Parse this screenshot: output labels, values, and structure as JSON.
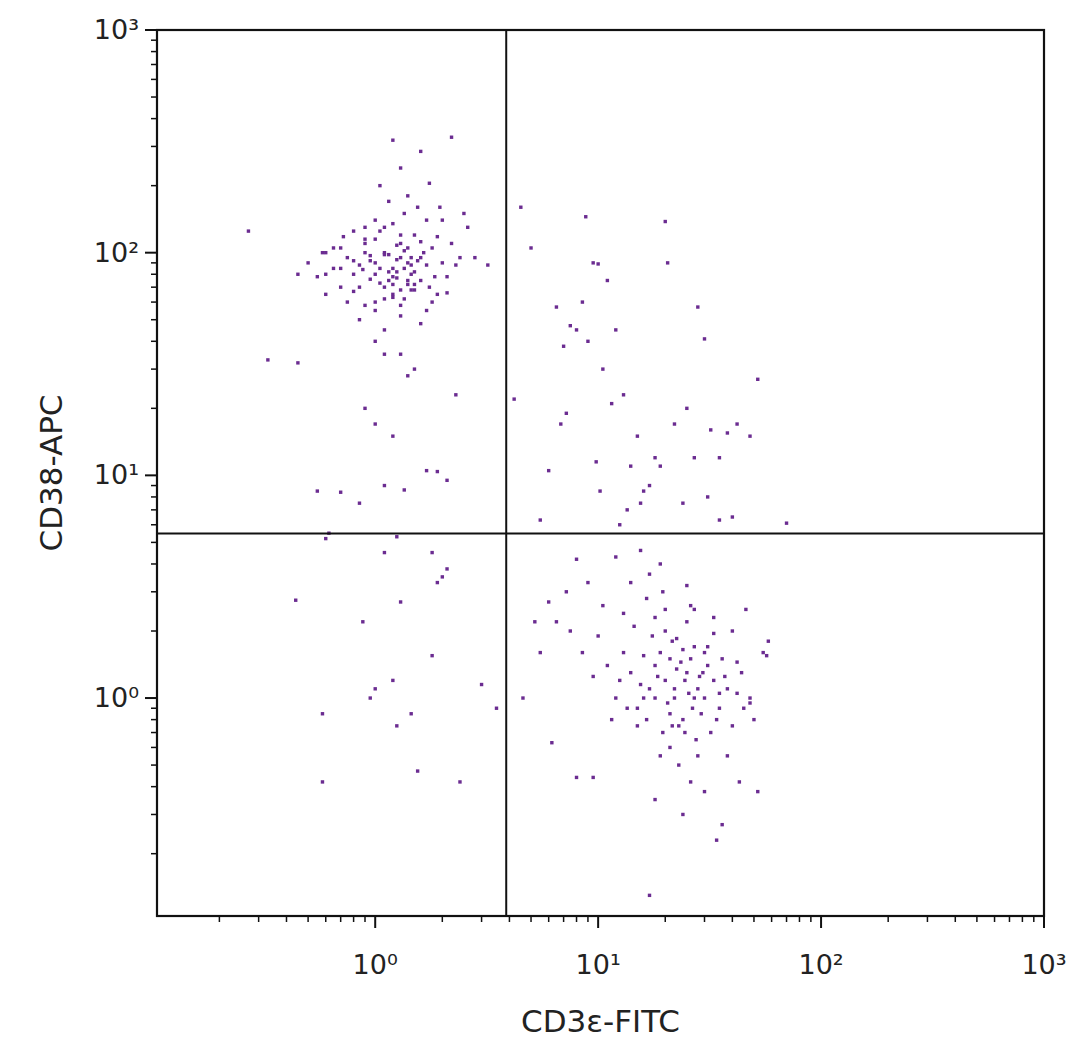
{
  "chart_data": {
    "type": "scatter",
    "log": true,
    "color": "#6b2c91",
    "marker": "square",
    "xlabel": "CD3ε-FITC",
    "ylabel": "CD38-APC",
    "xlim": [
      0.105,
      1000
    ],
    "ylim": [
      0.105,
      1000
    ],
    "xticks": [
      {
        "value": 1,
        "label": "10⁰"
      },
      {
        "value": 10,
        "label": "10¹"
      },
      {
        "value": 100,
        "label": "10²"
      },
      {
        "value": 1000,
        "label": "10³"
      }
    ],
    "yticks": [
      {
        "value": 1,
        "label": "10⁰"
      },
      {
        "value": 10,
        "label": "10¹"
      },
      {
        "value": 100,
        "label": "10²"
      },
      {
        "value": 1000,
        "label": "10³"
      }
    ],
    "quadrant_lines": {
      "x": 3.87,
      "y": 5.48
    },
    "x": [
      1.2,
      1.0,
      1.4,
      0.9,
      1.1,
      1.3,
      1.6,
      0.8,
      1.2,
      1.5,
      1.0,
      1.3,
      0.7,
      1.8,
      1.1,
      1.4,
      0.9,
      1.2,
      2.0,
      1.5,
      1.1,
      0.6,
      1.7,
      1.3,
      0.95,
      1.25,
      1.45,
      2.2,
      0.85,
      1.05,
      1.6,
      0.75,
      1.35,
      1.15,
      1.9,
      0.65,
      1.0,
      1.4,
      2.4,
      1.2,
      0.9,
      1.7,
      1.1,
      1.3,
      0.8,
      1.55,
      2.1,
      1.25,
      0.7,
      1.0,
      1.45,
      1.2,
      0.85,
      1.65,
      1.05,
      2.6,
      0.55,
      1.35,
      1.8,
      0.95,
      1.15,
      1.5,
      0.8,
      2.0,
      1.3,
      1.0,
      1.75,
      0.6,
      1.4,
      1.1,
      1.25,
      0.9,
      1.6,
      1.05,
      2.3,
      0.7,
      1.45,
      1.2,
      0.5,
      1.85,
      1.0,
      1.35,
      0.75,
      1.55,
      1.15,
      1.9,
      0.65,
      2.8,
      1.3,
      0.88,
      1.1,
      1.7,
      0.95,
      1.4,
      1.25,
      0.8,
      2.1,
      1.05,
      1.5,
      3.2,
      1.3,
      0.6,
      1.2,
      1.6,
      0.9,
      1.95,
      1.1,
      0.72,
      1.45,
      2.5,
      0.45,
      0.27,
      1.0,
      1.6,
      1.35,
      2.2,
      0.58,
      1.15,
      0.85,
      1.75,
      0.33,
      0.45,
      1.3,
      0.9,
      1.5,
      1.2,
      1.7,
      1.0,
      2.3,
      1.4,
      0.55,
      0.7,
      0.85,
      1.1,
      1.35,
      1.9,
      2.1,
      0.62,
      1.25,
      1.8,
      0.6,
      0.44,
      0.58,
      0.88,
      1.0,
      1.2,
      1.3,
      1.45,
      1.8,
      1.1,
      0.95,
      1.25,
      1.55,
      2.0,
      2.4,
      0.58,
      3.0,
      2.1,
      1.9,
      3.5,
      4.5,
      5.0,
      4.2,
      6.5,
      7.5,
      8.8,
      10,
      11,
      9.5,
      7,
      8,
      9,
      12,
      13,
      15,
      17,
      20,
      20.5,
      25,
      30,
      7.2,
      6.8,
      8.5,
      10.5,
      11.5,
      14,
      16,
      18,
      22,
      28,
      5.5,
      6,
      9.8,
      10.2,
      13.5,
      19,
      24,
      27,
      32,
      35,
      38,
      42,
      48,
      52,
      31,
      35,
      40,
      12.5,
      15.5,
      70,
      20,
      22,
      18,
      25,
      15,
      28,
      24,
      19,
      21,
      30,
      17,
      26,
      23,
      33,
      14,
      20.5,
      27,
      16,
      35,
      22.5,
      19.5,
      24.5,
      13,
      29,
      21.5,
      18.5,
      31,
      25.5,
      16.5,
      38,
      12,
      27.5,
      20,
      23.5,
      15.5,
      34,
      17.5,
      42,
      28.5,
      21,
      11,
      14.5,
      36,
      26.5,
      19,
      24,
      45,
      18,
      32,
      22,
      10,
      13.5,
      40,
      25,
      16,
      29.5,
      21,
      33,
      12.5,
      27,
      9.5,
      15,
      37,
      20,
      24.5,
      44,
      18,
      30,
      11.5,
      26,
      8.5,
      23,
      48,
      16.5,
      35,
      13,
      28,
      19.5,
      42,
      21.5,
      7.5,
      10.5,
      50,
      14,
      31,
      17,
      25,
      55,
      38,
      22.5,
      6.5,
      9,
      12,
      8,
      15.5,
      19,
      27,
      33,
      40,
      46,
      5.2,
      6.0,
      7.2,
      5.5,
      4.6,
      6.2,
      8.0,
      9.5,
      24,
      18,
      30,
      36,
      34,
      17,
      26,
      52,
      58,
      57,
      43,
      48
    ],
    "values": [
      85,
      90,
      75,
      100,
      70,
      110,
      95,
      80,
      65,
      120,
      60,
      95,
      85,
      105,
      130,
      72,
      115,
      78,
      90,
      68,
      100,
      80,
      140,
      58,
      92,
      82,
      88,
      110,
      70,
      125,
      75,
      95,
      150,
      98,
      65,
      85,
      55,
      105,
      95,
      72,
      110,
      88,
      62,
      120,
      67,
      160,
      78,
      93,
      105,
      80,
      68,
      135,
      88,
      100,
      73,
      130,
      78,
      85,
      60,
      97,
      170,
      82,
      125,
      140,
      52,
      115,
      70,
      100,
      90,
      45,
      77,
      58,
      112,
      200,
      88,
      70,
      95,
      63,
      90,
      78,
      140,
      102,
      60,
      92,
      82,
      118,
      105,
      95,
      68,
      84,
      98,
      55,
      76,
      180,
      108,
      92,
      66,
      85,
      72,
      88,
      240,
      65,
      320,
      48,
      130,
      160,
      35,
      118,
      80,
      150,
      80,
      125,
      40,
      285,
      62,
      330,
      100,
      75,
      50,
      205,
      33,
      32,
      35,
      20,
      30,
      15,
      10.5,
      17,
      23,
      28,
      8.5,
      8.4,
      7.5,
      9,
      8.6,
      10.4,
      9.5,
      5.5,
      5.3,
      4.5,
      5.2,
      2.75,
      0.85,
      2.2,
      1.1,
      1.2,
      2.7,
      0.85,
      1.55,
      4.5,
      1.0,
      0.75,
      0.47,
      3.5,
      0.42,
      0.42,
      1.15,
      3.8,
      3.3,
      0.9,
      160,
      105,
      22,
      57,
      47,
      145,
      89,
      75,
      90,
      38,
      45,
      40,
      45,
      23,
      15,
      9,
      138,
      90,
      20,
      41,
      19,
      17,
      60,
      30,
      21,
      11,
      8.5,
      12,
      17,
      57,
      6.3,
      10.5,
      11.5,
      8.5,
      7,
      11,
      7.5,
      12,
      16,
      12,
      15.5,
      17,
      15,
      27,
      8,
      6.3,
      6.5,
      6,
      7.5,
      6.1,
      1.2,
      1.0,
      1.4,
      1.3,
      0.9,
      1.1,
      0.8,
      1.6,
      1.5,
      1.0,
      1.1,
      1.5,
      0.75,
      1.2,
      1.3,
      0.95,
      1.7,
      1.0,
      0.9,
      1.35,
      0.7,
      1.2,
      1.6,
      0.85,
      1.8,
      1.25,
      1.4,
      1.05,
      0.8,
      1.1,
      1.0,
      0.65,
      2.0,
      1.45,
      1.15,
      0.8,
      1.9,
      1.05,
      1.25,
      0.6,
      1.4,
      2.1,
      1.5,
      0.9,
      0.55,
      1.65,
      0.9,
      2.3,
      0.7,
      1.1,
      1.9,
      0.9,
      0.75,
      2.2,
      1.55,
      1.3,
      0.85,
      1.95,
      1.2,
      1.0,
      1.25,
      0.75,
      1.25,
      2.5,
      0.7,
      1.3,
      1.0,
      1.6,
      0.8,
      2.6,
      1.6,
      0.5,
      1.0,
      2.8,
      1.05,
      2.4,
      0.55,
      3.0,
      1.45,
      0.75,
      2.0,
      2.6,
      0.8,
      3.3,
      1.7,
      3.6,
      3.2,
      1.6,
      0.55,
      1.85,
      2.2,
      3.3,
      4.3,
      4.2,
      4.6,
      4.0,
      2.5,
      2.3,
      2.0,
      2.5,
      2.2,
      2.7,
      3.0,
      1.6,
      1.0,
      0.63,
      0.44,
      0.44,
      0.3,
      0.35,
      0.38,
      0.27,
      0.23,
      0.13,
      0.42,
      0.38,
      1.8,
      1.55,
      0.42,
      0.95
    ]
  }
}
